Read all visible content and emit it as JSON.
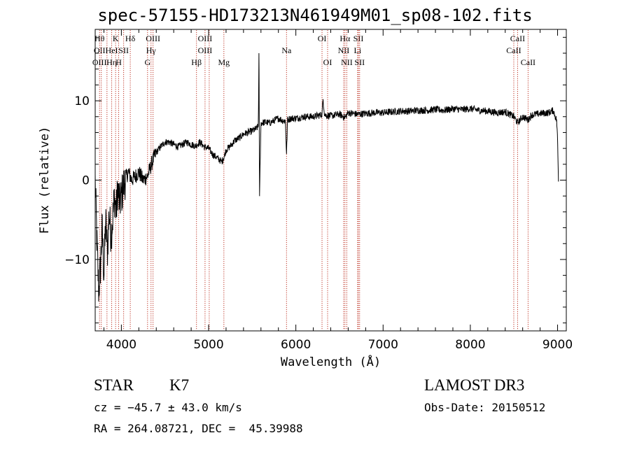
{
  "title": "spec-57155-HD173213N461949M01_sp08-102.fits",
  "chart_data": {
    "type": "line",
    "xlabel": "Wavelength (Å)",
    "ylabel": "Flux (relative)",
    "xlim": [
      3700,
      9100
    ],
    "ylim": [
      -19,
      19
    ],
    "xticks": [
      4000,
      5000,
      6000,
      7000,
      8000,
      9000
    ],
    "yticks": [
      -10,
      0,
      10
    ],
    "series": [
      {
        "x": [
          3700,
          3720,
          3740,
          3760,
          3780,
          3800,
          3820,
          3840,
          3860,
          3880,
          3900,
          3920,
          3940,
          3960,
          3980,
          4000,
          4040,
          4080,
          4120,
          4160,
          4200,
          4250,
          4300,
          4330,
          4360,
          4400,
          4450,
          4500,
          4550,
          4600,
          4650,
          4700,
          4750,
          4800,
          4850,
          4900,
          4950,
          5000,
          5050,
          5100,
          5150,
          5180,
          5200,
          5250,
          5300,
          5350,
          5400,
          5450,
          5500,
          5550,
          5570,
          5577,
          5584,
          5600,
          5650,
          5700,
          5750,
          5800,
          5850,
          5880,
          5893,
          5905,
          5950,
          6000,
          6100,
          6200,
          6280,
          6300,
          6312,
          6330,
          6400,
          6500,
          6563,
          6600,
          6700,
          6800,
          6900,
          7000,
          7100,
          7200,
          7300,
          7400,
          7500,
          7600,
          7700,
          7800,
          7900,
          8000,
          8100,
          8200,
          8300,
          8400,
          8500,
          8542,
          8600,
          8662,
          8700,
          8800,
          8900,
          8950,
          8990,
          9000,
          9010
        ],
        "y": [
          0,
          -8,
          -14,
          -11,
          -6,
          -12,
          -5,
          -9,
          -4,
          -7,
          -5,
          -2,
          -4,
          -1,
          -3,
          -2,
          0,
          1,
          0,
          0.5,
          1,
          0,
          0.5,
          1.5,
          2.5,
          3.5,
          4.2,
          4.8,
          4.8,
          4.5,
          4.2,
          4.5,
          4.8,
          4.5,
          4.3,
          4.8,
          4.2,
          4.0,
          3.2,
          2.8,
          2.3,
          3.0,
          3.8,
          4.3,
          5.0,
          5.3,
          5.8,
          6.0,
          6.2,
          6.5,
          6.8,
          16.0,
          -1.8,
          7.2,
          7.3,
          7.2,
          7.5,
          7.8,
          7.5,
          7.5,
          3.3,
          7.6,
          7.8,
          7.8,
          8.0,
          8.0,
          8.2,
          8.3,
          10.2,
          8.2,
          8.1,
          8.3,
          7.9,
          8.5,
          8.3,
          8.4,
          8.5,
          8.5,
          8.6,
          8.7,
          8.7,
          8.8,
          8.8,
          8.9,
          8.8,
          9.0,
          8.9,
          9.0,
          8.8,
          8.7,
          8.5,
          8.6,
          8.0,
          7.2,
          8.0,
          7.6,
          8.2,
          8.4,
          8.5,
          8.8,
          7.5,
          5.0,
          0
        ]
      }
    ],
    "lines": [
      {
        "x": 3750,
        "labels": [
          "H&#952;",
          "OII",
          "OIII"
        ]
      },
      {
        "x": 3770,
        "labels": []
      },
      {
        "x": 3835,
        "labels": [
          ""
        ]
      },
      {
        "x": 3889,
        "labels": [
          "",
          "HeI",
          "H&#951;"
        ]
      },
      {
        "x": 3934,
        "labels": [
          "K"
        ]
      },
      {
        "x": 3969,
        "labels": [
          "",
          "",
          "H"
        ]
      },
      {
        "x": 4026,
        "labels": [
          "",
          "SII"
        ]
      },
      {
        "x": 4102,
        "labels": [
          "H&#948;"
        ]
      },
      {
        "x": 4300,
        "labels": [
          "",
          "",
          "G"
        ]
      },
      {
        "x": 4340,
        "labels": [
          "",
          "H&#947;"
        ]
      },
      {
        "x": 4363,
        "labels": [
          "OIII"
        ]
      },
      {
        "x": 4861,
        "labels": [
          "",
          "",
          "H&#946;"
        ]
      },
      {
        "x": 4959,
        "labels": [
          "OIII",
          "OIII"
        ]
      },
      {
        "x": 5007,
        "labels": []
      },
      {
        "x": 5175,
        "labels": [
          "",
          "",
          "Mg"
        ]
      },
      {
        "x": 5893,
        "labels": [
          "",
          "Na"
        ]
      },
      {
        "x": 6300,
        "labels": [
          "OI"
        ]
      },
      {
        "x": 6364,
        "labels": [
          "",
          "",
          "OI"
        ]
      },
      {
        "x": 6548,
        "labels": [
          "",
          "NII"
        ]
      },
      {
        "x": 6563,
        "labels": [
          "H&#945;"
        ]
      },
      {
        "x": 6584,
        "labels": [
          "",
          "",
          "NII"
        ]
      },
      {
        "x": 6708,
        "labels": [
          "",
          "Li"
        ]
      },
      {
        "x": 6717,
        "labels": [
          "SII",
          "",
          ""
        ]
      },
      {
        "x": 6731,
        "labels": [
          "",
          "",
          "SII"
        ]
      },
      {
        "x": 8498,
        "labels": [
          "",
          "CaII"
        ]
      },
      {
        "x": 8542,
        "labels": [
          "CaII"
        ]
      },
      {
        "x": 8662,
        "labels": [
          "",
          "",
          "CaII"
        ]
      }
    ]
  },
  "info": {
    "class": "STAR",
    "subclass": "K7",
    "survey": "LAMOST DR3",
    "cz": "cz = −45.7 ± 43.0 km/s",
    "obsdate": "Obs-Date: 20150512",
    "radec": "RA = 264.08721, DEC =  45.39988"
  }
}
